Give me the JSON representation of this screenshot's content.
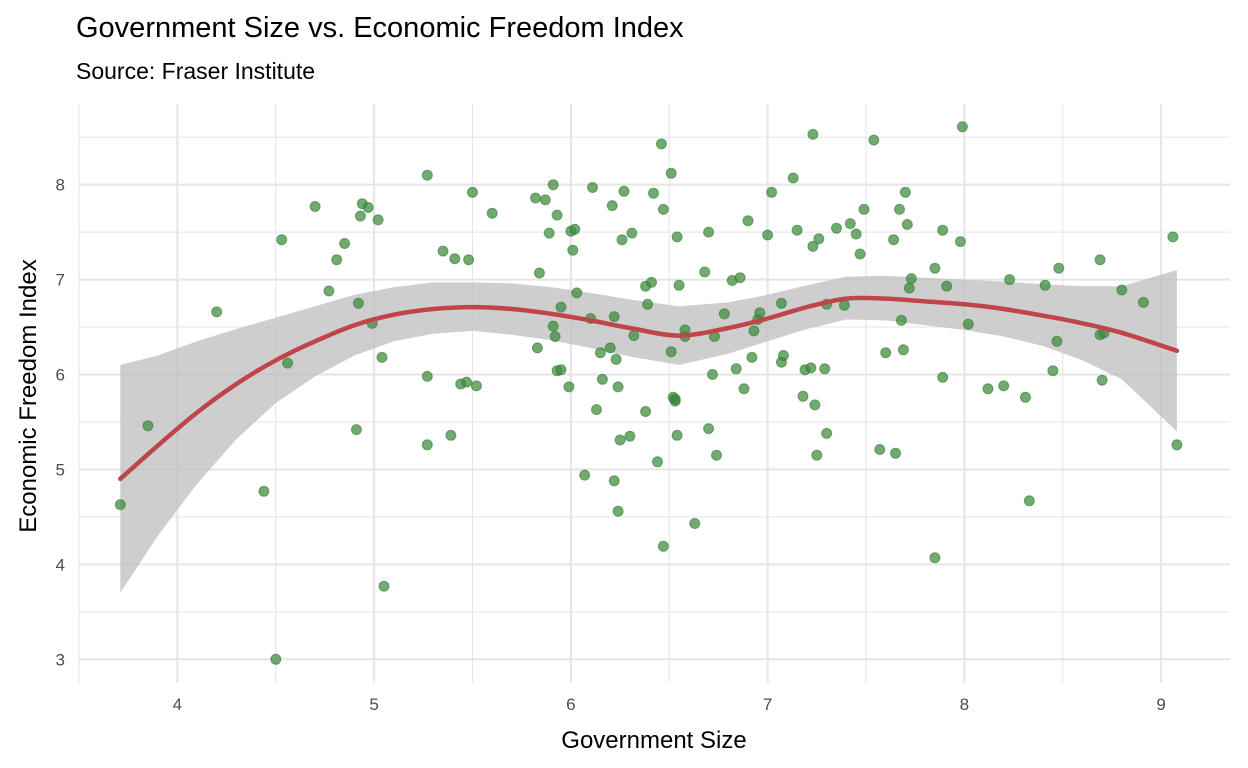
{
  "chart_data": {
    "type": "scatter",
    "title": "Government Size vs. Economic Freedom Index",
    "subtitle": "Source: Fraser Institute",
    "xlabel": "Government Size",
    "ylabel": "Economic Freedom Index",
    "xlim": [
      3.5,
      9.35
    ],
    "ylim": [
      2.75,
      8.85
    ],
    "xticks": [
      4,
      5,
      6,
      7,
      8,
      9
    ],
    "yticks": [
      3,
      4,
      5,
      6,
      7,
      8
    ],
    "grid": true,
    "colors": {
      "points": "#3a8b3a",
      "smooth_line": "#c0454a",
      "ribbon": "#bdbdbd",
      "grid": "#e5e5e5"
    },
    "points": [
      [
        3.71,
        4.63
      ],
      [
        3.85,
        5.46
      ],
      [
        4.2,
        6.66
      ],
      [
        4.44,
        4.77
      ],
      [
        4.5,
        3.0
      ],
      [
        4.53,
        7.42
      ],
      [
        4.56,
        6.12
      ],
      [
        4.7,
        7.77
      ],
      [
        4.77,
        6.88
      ],
      [
        4.81,
        7.21
      ],
      [
        4.85,
        7.38
      ],
      [
        4.91,
        5.42
      ],
      [
        4.92,
        6.75
      ],
      [
        4.93,
        7.67
      ],
      [
        4.94,
        7.8
      ],
      [
        4.97,
        7.76
      ],
      [
        4.99,
        6.54
      ],
      [
        5.02,
        7.63
      ],
      [
        5.04,
        6.18
      ],
      [
        5.05,
        3.77
      ],
      [
        5.27,
        5.98
      ],
      [
        5.27,
        8.1
      ],
      [
        5.27,
        5.26
      ],
      [
        5.35,
        7.3
      ],
      [
        5.39,
        5.36
      ],
      [
        5.41,
        7.22
      ],
      [
        5.44,
        5.9
      ],
      [
        5.47,
        5.92
      ],
      [
        5.48,
        7.21
      ],
      [
        5.5,
        7.92
      ],
      [
        5.52,
        5.88
      ],
      [
        5.6,
        7.7
      ],
      [
        5.82,
        7.86
      ],
      [
        5.83,
        6.28
      ],
      [
        5.84,
        7.07
      ],
      [
        5.87,
        7.84
      ],
      [
        5.89,
        7.49
      ],
      [
        5.91,
        8.0
      ],
      [
        5.91,
        6.51
      ],
      [
        5.92,
        6.4
      ],
      [
        5.93,
        6.04
      ],
      [
        5.93,
        7.68
      ],
      [
        5.95,
        6.05
      ],
      [
        5.95,
        6.71
      ],
      [
        5.99,
        5.87
      ],
      [
        6.0,
        7.51
      ],
      [
        6.01,
        7.31
      ],
      [
        6.02,
        7.53
      ],
      [
        6.03,
        6.86
      ],
      [
        6.07,
        4.94
      ],
      [
        6.1,
        6.59
      ],
      [
        6.11,
        7.97
      ],
      [
        6.13,
        5.63
      ],
      [
        6.15,
        6.23
      ],
      [
        6.16,
        5.95
      ],
      [
        6.2,
        6.28
      ],
      [
        6.21,
        7.78
      ],
      [
        6.22,
        6.61
      ],
      [
        6.22,
        4.88
      ],
      [
        6.23,
        6.16
      ],
      [
        6.24,
        5.87
      ],
      [
        6.24,
        4.56
      ],
      [
        6.25,
        5.31
      ],
      [
        6.26,
        7.42
      ],
      [
        6.27,
        7.93
      ],
      [
        6.3,
        5.35
      ],
      [
        6.31,
        7.49
      ],
      [
        6.32,
        6.41
      ],
      [
        6.38,
        5.61
      ],
      [
        6.38,
        6.93
      ],
      [
        6.39,
        6.74
      ],
      [
        6.41,
        6.97
      ],
      [
        6.42,
        7.91
      ],
      [
        6.44,
        5.08
      ],
      [
        6.46,
        8.43
      ],
      [
        6.47,
        7.74
      ],
      [
        6.47,
        4.19
      ],
      [
        6.51,
        8.12
      ],
      [
        6.51,
        6.24
      ],
      [
        6.52,
        5.76
      ],
      [
        6.53,
        5.72
      ],
      [
        6.53,
        5.74
      ],
      [
        6.54,
        7.45
      ],
      [
        6.54,
        5.36
      ],
      [
        6.55,
        6.94
      ],
      [
        6.58,
        6.4
      ],
      [
        6.58,
        6.47
      ],
      [
        6.63,
        4.43
      ],
      [
        6.68,
        7.08
      ],
      [
        6.7,
        7.5
      ],
      [
        6.7,
        5.43
      ],
      [
        6.72,
        6.0
      ],
      [
        6.73,
        6.4
      ],
      [
        6.74,
        5.15
      ],
      [
        6.78,
        6.64
      ],
      [
        6.82,
        6.99
      ],
      [
        6.84,
        6.06
      ],
      [
        6.86,
        7.02
      ],
      [
        6.88,
        5.85
      ],
      [
        6.9,
        7.62
      ],
      [
        6.92,
        6.18
      ],
      [
        6.93,
        6.46
      ],
      [
        6.95,
        6.58
      ],
      [
        6.96,
        6.65
      ],
      [
        7.0,
        7.47
      ],
      [
        7.02,
        7.92
      ],
      [
        7.07,
        6.75
      ],
      [
        7.07,
        6.13
      ],
      [
        7.08,
        6.2
      ],
      [
        7.13,
        8.07
      ],
      [
        7.15,
        7.52
      ],
      [
        7.18,
        5.77
      ],
      [
        7.19,
        6.05
      ],
      [
        7.22,
        6.07
      ],
      [
        7.23,
        7.35
      ],
      [
        7.23,
        8.53
      ],
      [
        7.24,
        5.68
      ],
      [
        7.25,
        5.15
      ],
      [
        7.26,
        7.43
      ],
      [
        7.29,
        6.06
      ],
      [
        7.3,
        6.74
      ],
      [
        7.3,
        5.38
      ],
      [
        7.35,
        7.54
      ],
      [
        7.39,
        6.73
      ],
      [
        7.42,
        7.59
      ],
      [
        7.45,
        7.48
      ],
      [
        7.47,
        7.27
      ],
      [
        7.49,
        7.74
      ],
      [
        7.54,
        8.47
      ],
      [
        7.57,
        5.21
      ],
      [
        7.6,
        6.23
      ],
      [
        7.64,
        7.42
      ],
      [
        7.65,
        5.17
      ],
      [
        7.67,
        7.74
      ],
      [
        7.68,
        6.57
      ],
      [
        7.69,
        6.26
      ],
      [
        7.7,
        7.92
      ],
      [
        7.71,
        7.58
      ],
      [
        7.72,
        6.91
      ],
      [
        7.73,
        7.01
      ],
      [
        7.85,
        7.12
      ],
      [
        7.85,
        4.07
      ],
      [
        7.89,
        7.52
      ],
      [
        7.89,
        5.97
      ],
      [
        7.91,
        6.93
      ],
      [
        7.98,
        7.4
      ],
      [
        7.99,
        8.61
      ],
      [
        8.02,
        6.53
      ],
      [
        8.12,
        5.85
      ],
      [
        8.2,
        5.88
      ],
      [
        8.23,
        7.0
      ],
      [
        8.31,
        5.76
      ],
      [
        8.33,
        4.67
      ],
      [
        8.41,
        6.94
      ],
      [
        8.45,
        6.04
      ],
      [
        8.47,
        6.35
      ],
      [
        8.48,
        7.12
      ],
      [
        8.69,
        7.21
      ],
      [
        8.69,
        6.42
      ],
      [
        8.7,
        5.94
      ],
      [
        8.71,
        6.44
      ],
      [
        8.8,
        6.89
      ],
      [
        8.91,
        6.76
      ],
      [
        9.06,
        7.45
      ],
      [
        9.08,
        5.26
      ]
    ],
    "smooth": {
      "x": [
        3.71,
        3.9,
        4.1,
        4.3,
        4.5,
        4.7,
        4.9,
        5.1,
        5.3,
        5.5,
        5.7,
        5.9,
        6.1,
        6.3,
        6.55,
        6.8,
        7.0,
        7.2,
        7.4,
        7.6,
        7.8,
        8.0,
        8.2,
        8.4,
        8.6,
        8.8,
        9.08
      ],
      "y": [
        4.9,
        5.25,
        5.6,
        5.9,
        6.15,
        6.35,
        6.52,
        6.63,
        6.69,
        6.71,
        6.69,
        6.64,
        6.57,
        6.49,
        6.41,
        6.49,
        6.59,
        6.71,
        6.8,
        6.8,
        6.77,
        6.74,
        6.69,
        6.62,
        6.54,
        6.44,
        6.25
      ],
      "lower": [
        3.7,
        4.3,
        4.85,
        5.32,
        5.7,
        5.98,
        6.2,
        6.35,
        6.43,
        6.46,
        6.42,
        6.36,
        6.28,
        6.19,
        6.1,
        6.22,
        6.35,
        6.48,
        6.58,
        6.57,
        6.52,
        6.47,
        6.4,
        6.3,
        6.15,
        5.95,
        5.4
      ],
      "upper": [
        6.1,
        6.2,
        6.35,
        6.48,
        6.6,
        6.72,
        6.84,
        6.92,
        6.97,
        6.97,
        6.96,
        6.92,
        6.86,
        6.79,
        6.72,
        6.76,
        6.84,
        6.94,
        7.03,
        7.04,
        7.02,
        7.0,
        6.98,
        6.95,
        6.93,
        6.93,
        7.1
      ]
    }
  }
}
